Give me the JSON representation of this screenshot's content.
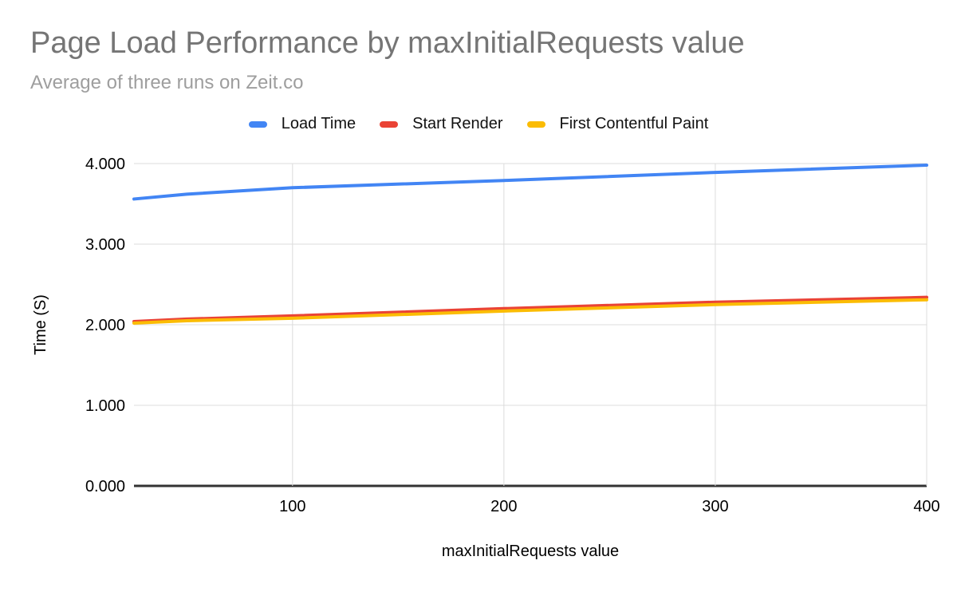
{
  "header": {
    "title": "Page Load Performance by maxInitialRequests value",
    "subtitle": "Average of three runs on Zeit.co",
    "title_color": "#757575",
    "subtitle_color": "#9e9e9e"
  },
  "chart_data": {
    "type": "line",
    "title": "Page Load Performance by maxInitialRequests value",
    "subtitle": "Average of three runs on Zeit.co",
    "xlabel": "maxInitialRequests value",
    "ylabel": "Time (S)",
    "x": [
      25,
      50,
      100,
      200,
      300,
      400
    ],
    "series": [
      {
        "name": "Load Time",
        "color": "#4285F4",
        "values": [
          3.56,
          3.62,
          3.7,
          3.79,
          3.89,
          3.98
        ]
      },
      {
        "name": "Start Render",
        "color": "#EA4335",
        "values": [
          2.04,
          2.07,
          2.11,
          2.2,
          2.28,
          2.34
        ]
      },
      {
        "name": "First Contentful Paint",
        "color": "#FBBC04",
        "values": [
          2.02,
          2.05,
          2.08,
          2.17,
          2.25,
          2.31
        ]
      }
    ],
    "xlim": [
      25,
      400
    ],
    "ylim": [
      0,
      4
    ],
    "x_ticks": [
      {
        "value": 100,
        "label": "100"
      },
      {
        "value": 200,
        "label": "200"
      },
      {
        "value": 300,
        "label": "300"
      },
      {
        "value": 400,
        "label": "400"
      }
    ],
    "y_ticks": [
      {
        "value": 0,
        "label": "0.000"
      },
      {
        "value": 1,
        "label": "1.000"
      },
      {
        "value": 2,
        "label": "2.000"
      },
      {
        "value": 3,
        "label": "3.000"
      },
      {
        "value": 4,
        "label": "4.000"
      }
    ],
    "grid": true,
    "legend_position": "top",
    "grid_color": "#dcdcdc",
    "axis_line_color": "#333333",
    "tick_label_color": "#000000"
  }
}
